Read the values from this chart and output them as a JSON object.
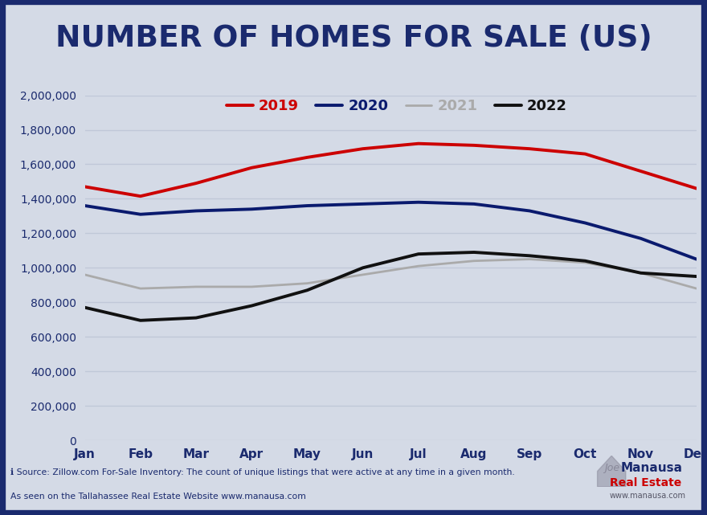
{
  "title": "NUMBER OF HOMES FOR SALE (US)",
  "months": [
    "Jan",
    "Feb",
    "Mar",
    "Apr",
    "May",
    "Jun",
    "Jul",
    "Aug",
    "Sep",
    "Oct",
    "Nov",
    "Dec"
  ],
  "series": {
    "2019": {
      "color": "#cc0000",
      "linewidth": 2.8,
      "values": [
        1470000,
        1415000,
        1490000,
        1580000,
        1640000,
        1690000,
        1720000,
        1710000,
        1690000,
        1660000,
        1560000,
        1460000
      ]
    },
    "2020": {
      "color": "#0a1a6e",
      "linewidth": 2.8,
      "values": [
        1360000,
        1310000,
        1330000,
        1340000,
        1360000,
        1370000,
        1380000,
        1370000,
        1330000,
        1260000,
        1170000,
        1050000
      ]
    },
    "2021": {
      "color": "#aaaaaa",
      "linewidth": 2.0,
      "values": [
        960000,
        880000,
        890000,
        890000,
        910000,
        960000,
        1010000,
        1040000,
        1050000,
        1030000,
        970000,
        880000
      ]
    },
    "2022": {
      "color": "#111111",
      "linewidth": 2.8,
      "values": [
        770000,
        695000,
        710000,
        780000,
        870000,
        1000000,
        1080000,
        1090000,
        1070000,
        1040000,
        970000,
        950000
      ]
    }
  },
  "ylim": [
    0,
    2000000
  ],
  "yticks": [
    0,
    200000,
    400000,
    600000,
    800000,
    1000000,
    1200000,
    1400000,
    1600000,
    1800000,
    2000000
  ],
  "chart_bg": "#d4dae6",
  "border_color": "#1a2a6e",
  "border_width": 6,
  "title_color": "#1a2a6e",
  "title_fontsize": 27,
  "grid_color": "#c0c8d8",
  "axis_label_color": "#1a2a6e",
  "legend_order": [
    "2019",
    "2020",
    "2021",
    "2022"
  ],
  "source_line1": "ℹ Source: Zillow.com For-Sale Inventory: The count of unique listings that were active at any time in a given month.",
  "source_line2": "As seen on the Tallahassee Real Estate Website www.manausa.com",
  "footer_bg": "#bdc8da"
}
